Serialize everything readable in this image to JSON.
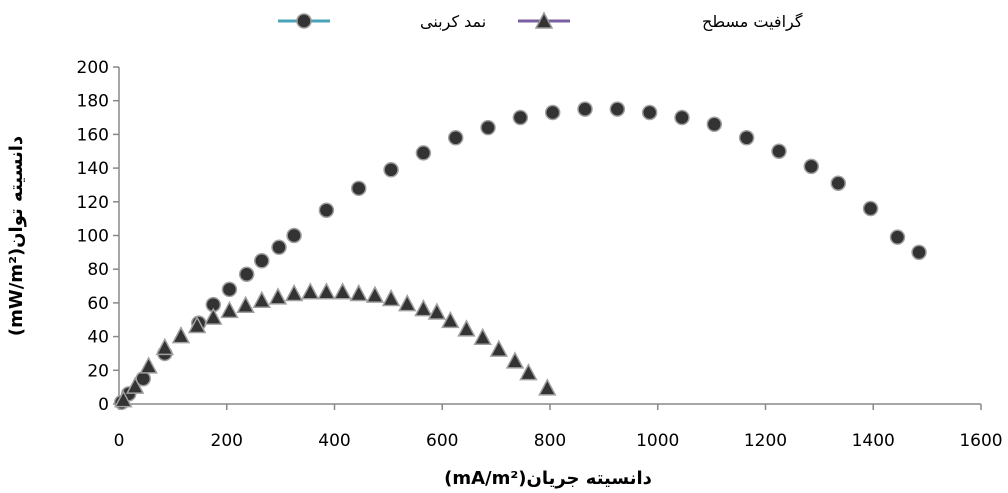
{
  "chart_data": {
    "type": "scatter",
    "xlabel": "دانسیته جریان(mA/m²)",
    "ylabel": "دانسیته توان(mW/m²)",
    "xlim": [
      0,
      1600
    ],
    "ylim": [
      0,
      200
    ],
    "x_ticks": [
      0,
      200,
      400,
      600,
      800,
      1000,
      1200,
      1400,
      1600
    ],
    "y_ticks": [
      0,
      20,
      40,
      60,
      80,
      100,
      120,
      140,
      160,
      180,
      200
    ],
    "grid": false,
    "legend_position": "top",
    "series": [
      {
        "name": "نمد کربنی",
        "marker": "circle",
        "marker_color": "#333333",
        "line_color": "#4aa3b8",
        "points": [
          [
            5,
            1
          ],
          [
            18,
            6
          ],
          [
            45,
            15
          ],
          [
            85,
            30
          ],
          [
            148,
            48
          ],
          [
            175,
            59
          ],
          [
            205,
            68
          ],
          [
            237,
            77
          ],
          [
            265,
            85
          ],
          [
            297,
            93
          ],
          [
            325,
            100
          ],
          [
            385,
            115
          ],
          [
            445,
            128
          ],
          [
            505,
            139
          ],
          [
            565,
            149
          ],
          [
            625,
            158
          ],
          [
            685,
            164
          ],
          [
            745,
            170
          ],
          [
            805,
            173
          ],
          [
            865,
            175
          ],
          [
            925,
            175
          ],
          [
            985,
            173
          ],
          [
            1045,
            170
          ],
          [
            1105,
            166
          ],
          [
            1165,
            158
          ],
          [
            1225,
            150
          ],
          [
            1285,
            141
          ],
          [
            1335,
            131
          ],
          [
            1395,
            116
          ],
          [
            1445,
            99
          ],
          [
            1485,
            90
          ]
        ]
      },
      {
        "name": "گرافیت مسطح",
        "marker": "triangle",
        "marker_color": "#333333",
        "line_color": "#7a5fa0",
        "points": [
          [
            8,
            2
          ],
          [
            30,
            10
          ],
          [
            55,
            22
          ],
          [
            85,
            33
          ],
          [
            115,
            40
          ],
          [
            145,
            46
          ],
          [
            175,
            51
          ],
          [
            205,
            55
          ],
          [
            235,
            58
          ],
          [
            265,
            61
          ],
          [
            295,
            63
          ],
          [
            325,
            65
          ],
          [
            355,
            66
          ],
          [
            385,
            66
          ],
          [
            415,
            66
          ],
          [
            445,
            65
          ],
          [
            475,
            64
          ],
          [
            505,
            62
          ],
          [
            535,
            59
          ],
          [
            565,
            56
          ],
          [
            590,
            54
          ],
          [
            615,
            49
          ],
          [
            645,
            44
          ],
          [
            675,
            39
          ],
          [
            705,
            32
          ],
          [
            735,
            25
          ],
          [
            760,
            18
          ],
          [
            795,
            9
          ]
        ]
      }
    ]
  }
}
